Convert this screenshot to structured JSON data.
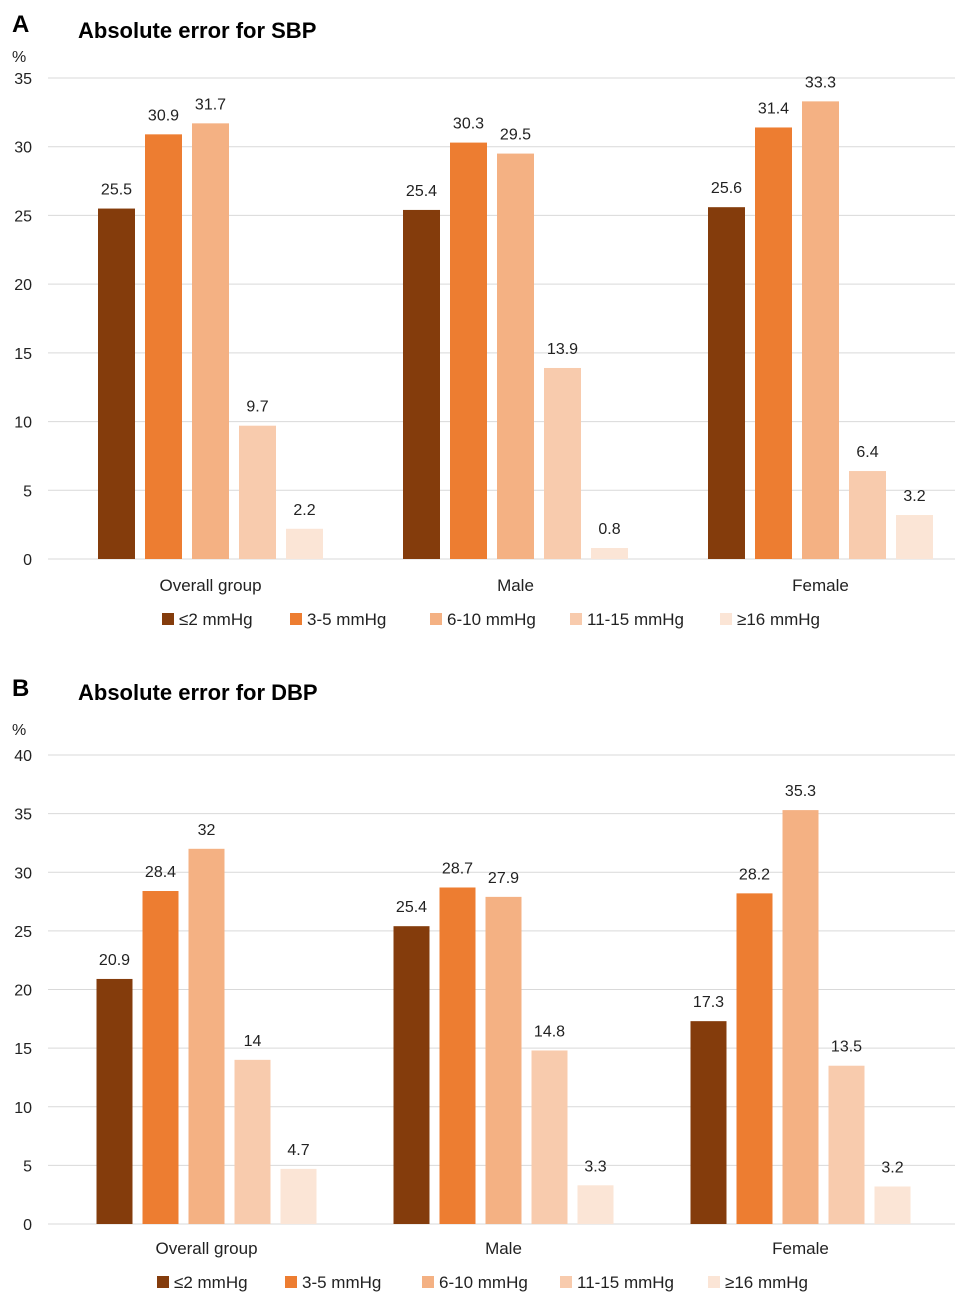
{
  "chart_data": [
    {
      "type": "bar",
      "panel": "A",
      "title": "Absolute error for SBP",
      "ylabel": "%",
      "ylim": [
        0,
        35
      ],
      "yticks": [
        0,
        5,
        10,
        15,
        20,
        25,
        30,
        35
      ],
      "grid": true,
      "legend_position": "bottom",
      "categories": [
        "Overall group",
        "Male",
        "Female"
      ],
      "series": [
        {
          "name": "≤2 mmHg",
          "color": "#843C0C",
          "values": [
            25.5,
            25.4,
            25.6
          ],
          "labels": [
            "25.5",
            "25.4",
            "25.6"
          ]
        },
        {
          "name": "3-5 mmHg",
          "color": "#ED7D31",
          "values": [
            30.9,
            30.3,
            31.4
          ],
          "labels": [
            "30.9",
            "30.3",
            "31.4"
          ]
        },
        {
          "name": "6-10 mmHg",
          "color": "#F4B183",
          "values": [
            31.7,
            29.5,
            33.3
          ],
          "labels": [
            "31.7",
            "29.5",
            "33.3"
          ]
        },
        {
          "name": "11-15 mmHg",
          "color": "#F8CBAD",
          "values": [
            9.7,
            13.9,
            6.4
          ],
          "labels": [
            "9.7",
            "13.9",
            "6.4"
          ]
        },
        {
          "name": "≥16 mmHg",
          "color": "#FBE5D6",
          "values": [
            2.2,
            0.8,
            3.2
          ],
          "labels": [
            "2.2",
            "0.8",
            "3.2"
          ]
        }
      ]
    },
    {
      "type": "bar",
      "panel": "B",
      "title": "Absolute error for DBP",
      "ylabel": "%",
      "ylim": [
        0,
        40
      ],
      "yticks": [
        0,
        5,
        10,
        15,
        20,
        25,
        30,
        35,
        40
      ],
      "grid": true,
      "legend_position": "bottom",
      "categories": [
        "Overall group",
        "Male",
        "Female"
      ],
      "series": [
        {
          "name": "≤2 mmHg",
          "color": "#843C0C",
          "values": [
            20.9,
            25.4,
            17.3
          ],
          "labels": [
            "20.9",
            "25.4",
            "17.3"
          ]
        },
        {
          "name": "3-5 mmHg",
          "color": "#ED7D31",
          "values": [
            28.4,
            28.7,
            28.2
          ],
          "labels": [
            "28.4",
            "28.7",
            "28.2"
          ]
        },
        {
          "name": "6-10 mmHg",
          "color": "#F4B183",
          "values": [
            32,
            27.9,
            35.3
          ],
          "labels": [
            "32",
            "27.9",
            "35.3"
          ]
        },
        {
          "name": "11-15 mmHg",
          "color": "#F8CBAD",
          "values": [
            14,
            14.8,
            13.5
          ],
          "labels": [
            "14",
            "14.8",
            "13.5"
          ]
        },
        {
          "name": "≥16 mmHg",
          "color": "#FBE5D6",
          "values": [
            4.7,
            3.3,
            3.2
          ],
          "labels": [
            "4.7",
            "3.3",
            "3.2"
          ]
        }
      ]
    }
  ]
}
